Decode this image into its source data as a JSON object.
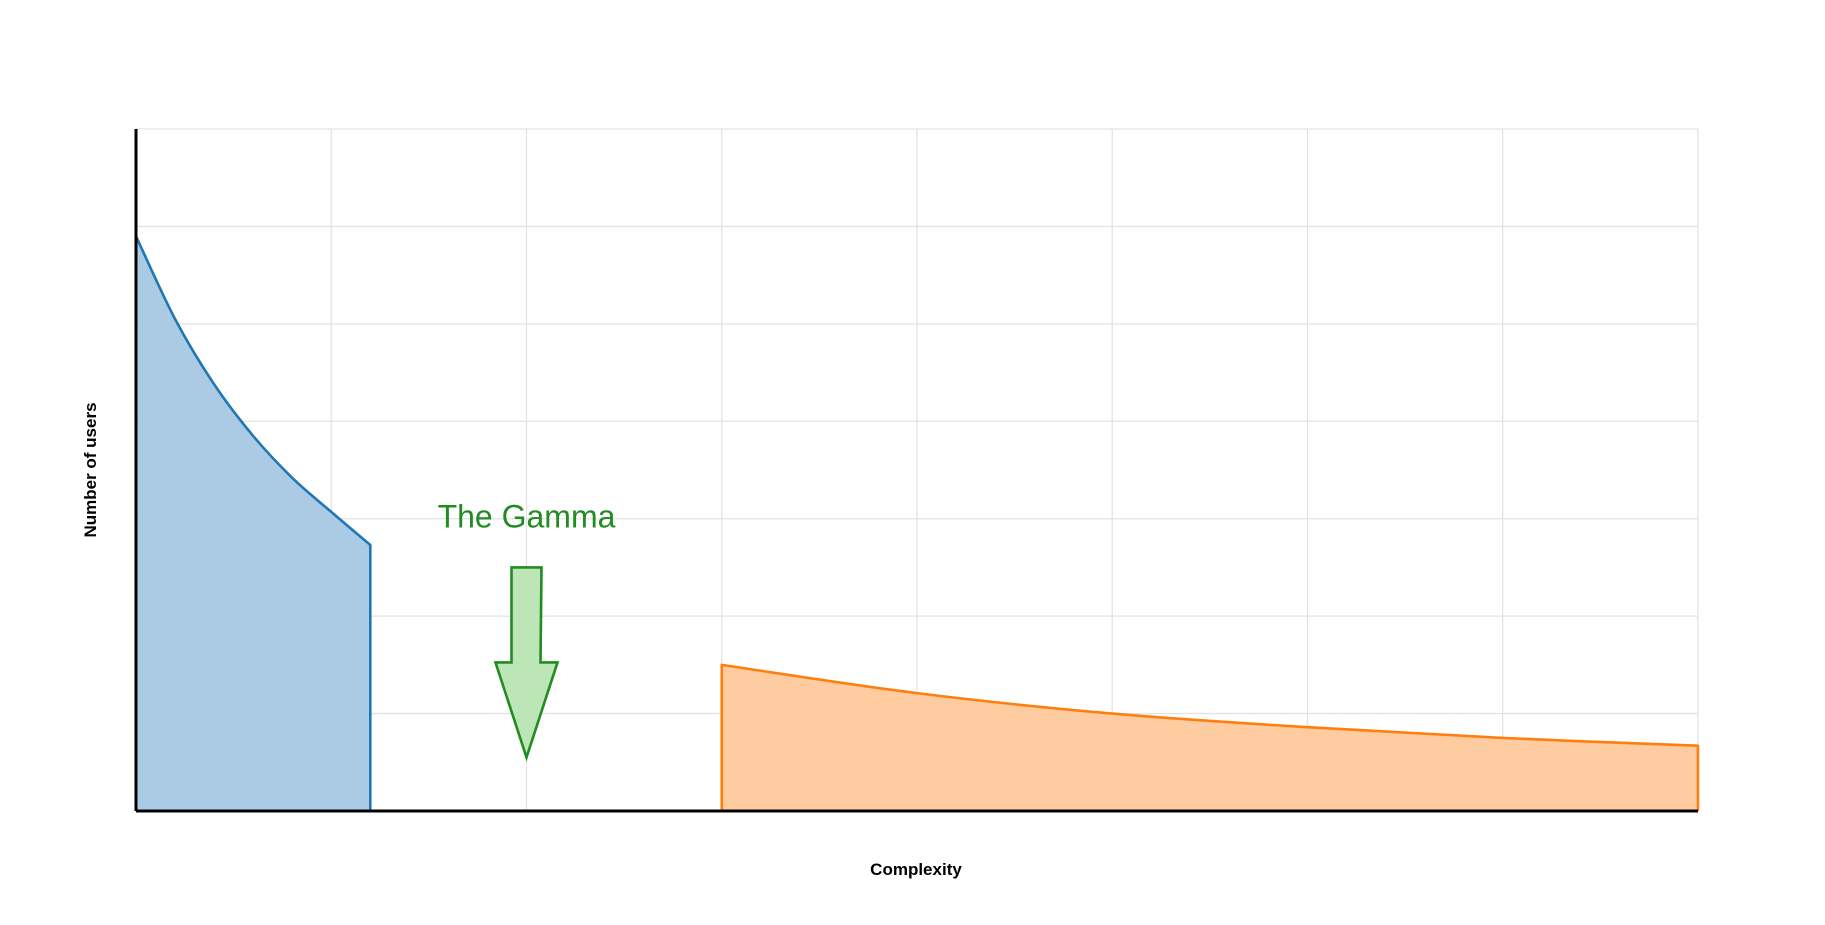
{
  "chart_data": {
    "type": "area",
    "xlabel": "Complexity",
    "ylabel": "Number of users",
    "xlim": [
      0,
      8
    ],
    "ylim": [
      0,
      7
    ],
    "grid": true,
    "series": [
      {
        "color": "#1f77b4",
        "fill": "#a7c8e3",
        "x": [
          0,
          0.2,
          0.4,
          0.6,
          0.8,
          1.0,
          1.2
        ],
        "y": [
          5.9,
          5.05,
          4.38,
          3.85,
          3.42,
          3.07,
          2.73
        ]
      },
      {
        "color": "#ff7f0e",
        "fill": "#fec99b",
        "x": [
          3,
          4,
          5,
          6,
          7,
          8
        ],
        "y": [
          1.5,
          1.21,
          1.0,
          0.86,
          0.75,
          0.67
        ]
      }
    ],
    "annotations": [
      {
        "text": "The Gamma",
        "color": "#228b22",
        "fill": "#bce6b5",
        "arrow_x": 2.0,
        "arrow_top_y": 2.5,
        "arrow_tip_y": 0.55
      }
    ]
  }
}
